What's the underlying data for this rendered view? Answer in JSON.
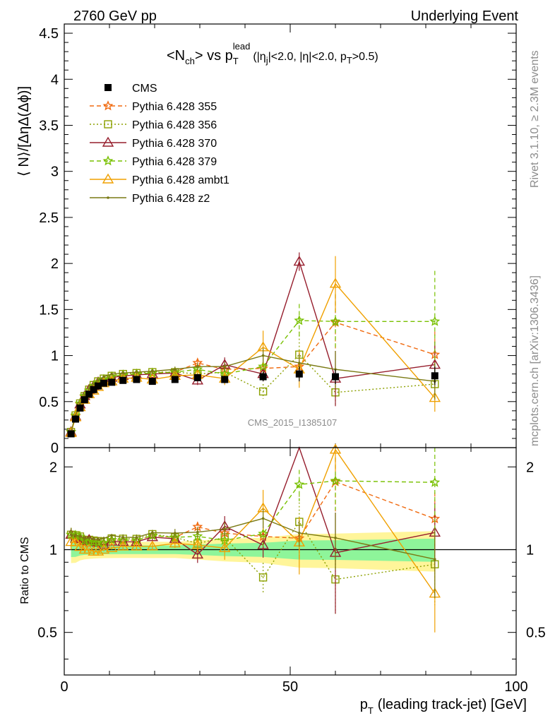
{
  "header": {
    "left": "2760 GeV pp",
    "right": "Underlying Event"
  },
  "plot": {
    "title_main": "<N",
    "title_ch": "ch",
    "title_vs": "> vs p",
    "title_T": "T",
    "title_lead": "lead",
    "title_cuts_pre": "(|η",
    "title_cuts_j": "j",
    "title_cuts_mid": "|<2.0, |η|<2.0, p",
    "title_cuts_T": "T",
    "title_cuts_post": ">0.5)",
    "ylabel": "⟨ N⟩/[ΔηΔ(Δϕ)]",
    "ratio_ylabel": "Ratio to CMS",
    "xlabel_p": "p",
    "xlabel_T": "T",
    "xlabel_rest": "(leading track-jet) [GeV]",
    "watermark": "CMS_2015_I1385107",
    "side_rivet": "Rivet 3.1.10, ≥ 2.3M events",
    "side_mcplots": "mcplots.cern.ch [arXiv:1306.3436]"
  },
  "chart_data": {
    "type": "scatter",
    "xlim": [
      0,
      100
    ],
    "ylim": [
      0,
      4.6
    ],
    "ratio_ylim": [
      0.35,
      2.35
    ],
    "ratio_log": true,
    "x_ticks": [
      "0",
      "50",
      "100"
    ],
    "y_ticks": [
      "0",
      "0.5",
      "1",
      "1.5",
      "2",
      "2.5",
      "3",
      "3.5",
      "4",
      "4.5"
    ],
    "ratio_ticks": [
      "0.5",
      "1",
      "2"
    ],
    "legend_position": "top-left",
    "x": [
      1.5,
      2.5,
      3.5,
      4.5,
      5.5,
      6.5,
      7.5,
      8.75,
      10.5,
      13.0,
      16.0,
      19.5,
      24.5,
      29.5,
      35.5,
      44.0,
      52.0,
      60.0,
      82.0
    ],
    "cms": {
      "name": "CMS",
      "color": "#000000",
      "values": [
        0.15,
        0.31,
        0.43,
        0.52,
        0.58,
        0.63,
        0.67,
        0.7,
        0.71,
        0.73,
        0.74,
        0.72,
        0.74,
        0.76,
        0.74,
        0.77,
        0.8,
        0.77,
        0.78
      ],
      "errors": [
        0.01,
        0.02,
        0.02,
        0.02,
        0.02,
        0.02,
        0.02,
        0.02,
        0.02,
        0.02,
        0.02,
        0.02,
        0.02,
        0.03,
        0.04,
        0.05,
        0.08,
        0.08,
        0.1
      ]
    },
    "series": [
      {
        "name": "Pythia 6.428 355",
        "color": "#f06a10",
        "dash": "6,4",
        "marker": "star",
        "values": [
          0.17,
          0.34,
          0.47,
          0.55,
          0.62,
          0.67,
          0.71,
          0.74,
          0.77,
          0.79,
          0.8,
          0.81,
          0.82,
          0.92,
          0.85,
          0.86,
          0.88,
          1.36,
          1.01
        ],
        "errors": [
          0.01,
          0.01,
          0.01,
          0.01,
          0.01,
          0.01,
          0.01,
          0.01,
          0.01,
          0.02,
          0.02,
          0.02,
          0.03,
          0.04,
          0.06,
          0.08,
          0.15,
          0.3,
          0.25
        ]
      },
      {
        "name": "Pythia 6.428 356",
        "color": "#8ca000",
        "dash": "2,3",
        "marker": "square",
        "values": [
          0.17,
          0.35,
          0.48,
          0.56,
          0.63,
          0.68,
          0.72,
          0.75,
          0.78,
          0.8,
          0.81,
          0.82,
          0.82,
          0.8,
          0.82,
          0.61,
          1.01,
          0.6,
          0.69
        ],
        "errors": [
          0.01,
          0.01,
          0.01,
          0.01,
          0.01,
          0.01,
          0.01,
          0.01,
          0.01,
          0.02,
          0.02,
          0.02,
          0.03,
          0.05,
          0.07,
          0.08,
          0.25,
          0.15,
          0.2
        ]
      },
      {
        "name": "Pythia 6.428 370",
        "color": "#961e2d",
        "dash": "",
        "marker": "triangle",
        "values": [
          0.17,
          0.34,
          0.47,
          0.56,
          0.63,
          0.67,
          0.71,
          0.73,
          0.76,
          0.78,
          0.79,
          0.8,
          0.81,
          0.73,
          0.9,
          0.8,
          2.02,
          0.75,
          0.9
        ],
        "errors": [
          0.01,
          0.01,
          0.01,
          0.01,
          0.01,
          0.01,
          0.01,
          0.01,
          0.01,
          0.02,
          0.02,
          0.02,
          0.03,
          0.05,
          0.08,
          0.08,
          0.1,
          0.3,
          0.25
        ]
      },
      {
        "name": "Pythia 6.428 379",
        "color": "#78c000",
        "dash": "6,4",
        "marker": "star",
        "values": [
          0.17,
          0.35,
          0.48,
          0.56,
          0.62,
          0.67,
          0.71,
          0.74,
          0.77,
          0.79,
          0.8,
          0.81,
          0.82,
          0.85,
          0.8,
          0.88,
          1.38,
          1.37,
          1.37
        ],
        "errors": [
          0.01,
          0.01,
          0.01,
          0.01,
          0.01,
          0.01,
          0.01,
          0.01,
          0.01,
          0.02,
          0.02,
          0.02,
          0.03,
          0.05,
          0.07,
          0.1,
          0.18,
          0.3,
          0.55
        ]
      },
      {
        "name": "Pythia 6.428 ambt1",
        "color": "#f0a000",
        "dash": "",
        "marker": "triangle",
        "values": [
          0.16,
          0.33,
          0.44,
          0.52,
          0.58,
          0.62,
          0.66,
          0.7,
          0.72,
          0.75,
          0.76,
          0.74,
          0.78,
          0.79,
          0.75,
          1.09,
          0.85,
          1.78,
          0.54
        ],
        "errors": [
          0.01,
          0.01,
          0.01,
          0.01,
          0.01,
          0.01,
          0.01,
          0.01,
          0.01,
          0.02,
          0.02,
          0.02,
          0.03,
          0.05,
          0.07,
          0.18,
          0.2,
          0.3,
          0.15
        ]
      },
      {
        "name": "Pythia 6.428 z2",
        "color": "#7a7a14",
        "dash": "",
        "marker": "dot",
        "values": [
          0.17,
          0.35,
          0.48,
          0.57,
          0.64,
          0.69,
          0.73,
          0.77,
          0.8,
          0.81,
          0.82,
          0.83,
          0.85,
          0.88,
          0.88,
          1.0,
          0.92,
          0.85,
          0.72
        ],
        "errors": [
          0.01,
          0.01,
          0.01,
          0.01,
          0.01,
          0.01,
          0.01,
          0.01,
          0.01,
          0.02,
          0.02,
          0.02,
          0.03,
          0.04,
          0.05,
          0.08,
          0.1,
          0.2,
          0.2
        ]
      }
    ]
  }
}
